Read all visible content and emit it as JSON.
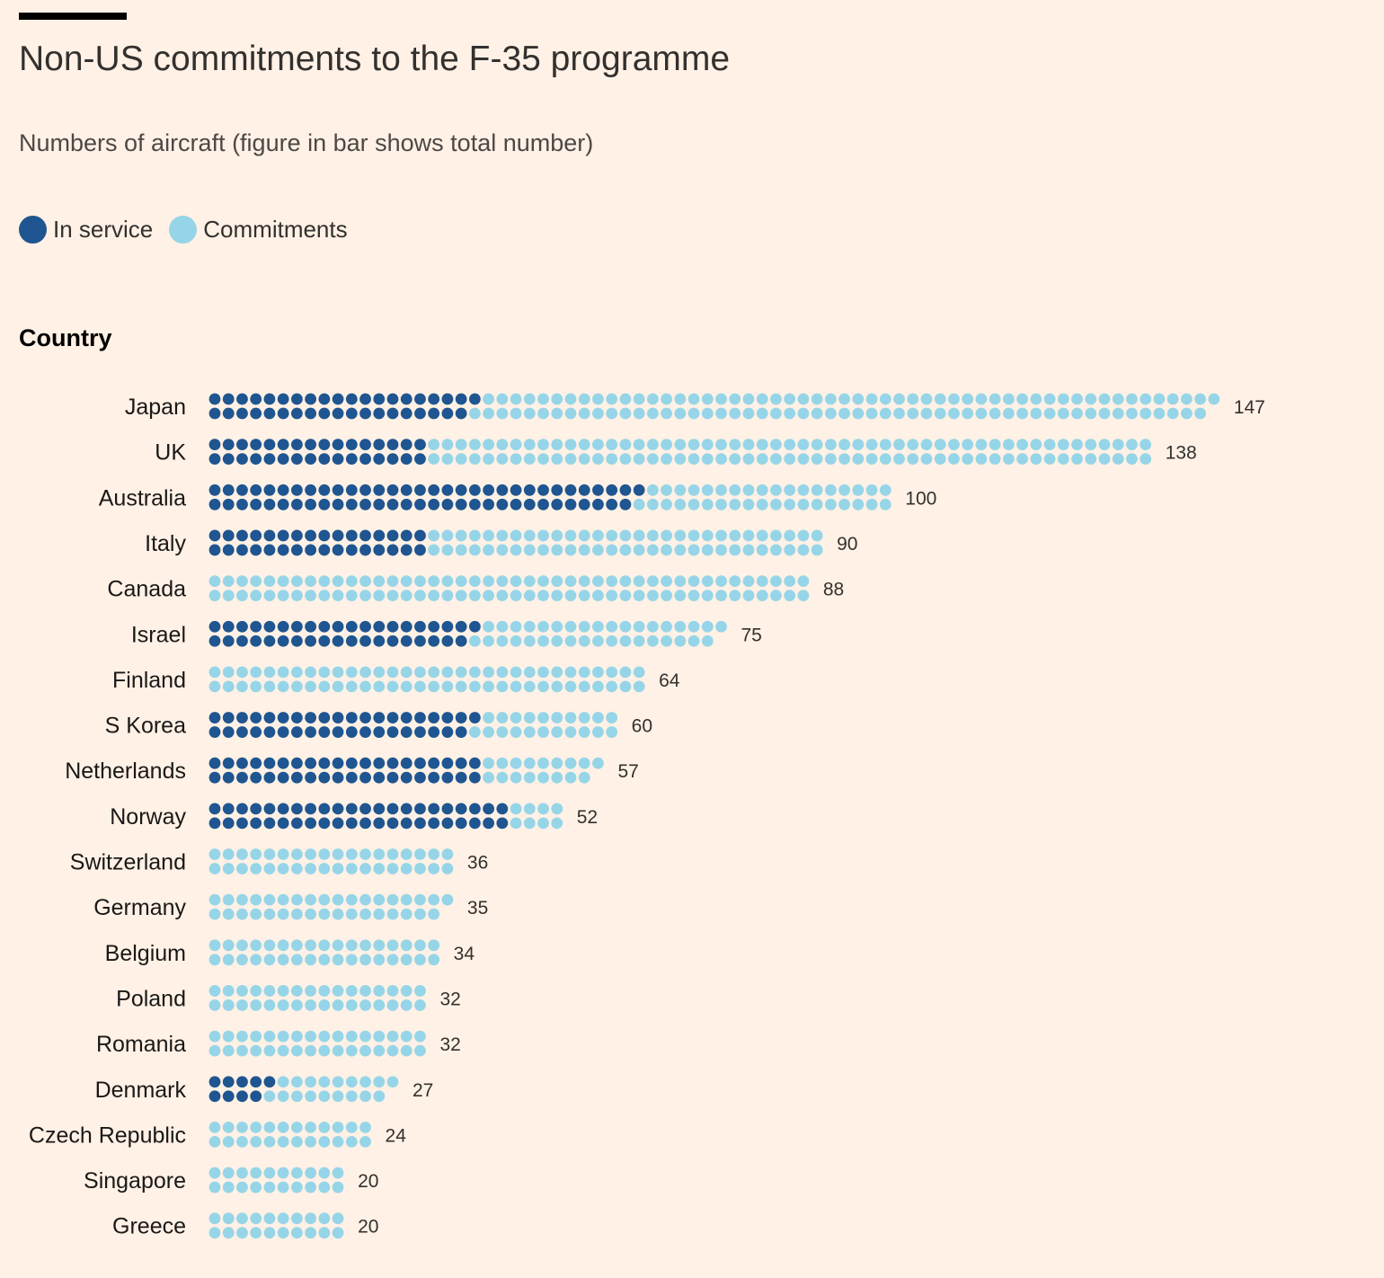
{
  "header": {
    "title": "Non-US commitments to the F-35 programme",
    "subtitle": "Numbers of aircraft (figure in bar shows total number)",
    "column_label": "Country"
  },
  "legend": {
    "in_service": "In service",
    "commitments": "Commitments"
  },
  "colors": {
    "in_service": "#1f5590",
    "commitments": "#96d5e8",
    "background": "#fff1e5"
  },
  "chart_data": {
    "type": "waffle-bar",
    "title": "Non-US commitments to the F-35 programme",
    "subtitle": "Numbers of aircraft (figure in bar shows total number)",
    "category_label": "Country",
    "series": [
      {
        "name": "In service"
      },
      {
        "name": "Commitments"
      }
    ],
    "rows": [
      {
        "country": "Japan",
        "total": 147,
        "in_service": 39
      },
      {
        "country": "UK",
        "total": 138,
        "in_service": 32
      },
      {
        "country": "Australia",
        "total": 100,
        "in_service": 63
      },
      {
        "country": "Italy",
        "total": 90,
        "in_service": 32
      },
      {
        "country": "Canada",
        "total": 88,
        "in_service": 0
      },
      {
        "country": "Israel",
        "total": 75,
        "in_service": 39
      },
      {
        "country": "Finland",
        "total": 64,
        "in_service": 0
      },
      {
        "country": "S Korea",
        "total": 60,
        "in_service": 39
      },
      {
        "country": "Netherlands",
        "total": 57,
        "in_service": 40
      },
      {
        "country": "Norway",
        "total": 52,
        "in_service": 44
      },
      {
        "country": "Switzerland",
        "total": 36,
        "in_service": 0
      },
      {
        "country": "Germany",
        "total": 35,
        "in_service": 0
      },
      {
        "country": "Belgium",
        "total": 34,
        "in_service": 0
      },
      {
        "country": "Poland",
        "total": 32,
        "in_service": 0
      },
      {
        "country": "Romania",
        "total": 32,
        "in_service": 0
      },
      {
        "country": "Denmark",
        "total": 27,
        "in_service": 9
      },
      {
        "country": "Czech Republic",
        "total": 24,
        "in_service": 0
      },
      {
        "country": "Singapore",
        "total": 20,
        "in_service": 0
      },
      {
        "country": "Greece",
        "total": 20,
        "in_service": 0
      }
    ]
  }
}
